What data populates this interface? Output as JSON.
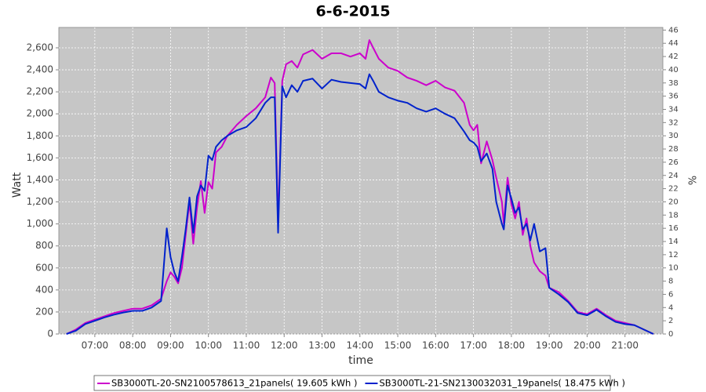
{
  "chart_data": {
    "type": "line",
    "title": "6-6-2015",
    "xlabel": "time",
    "ylabel": "Watt",
    "y2label": "%",
    "xlim": [
      6.05,
      22.0
    ],
    "xticks": [
      {
        "value": 7,
        "label": "07:00"
      },
      {
        "value": 8,
        "label": "08:00"
      },
      {
        "value": 9,
        "label": "09:00"
      },
      {
        "value": 10,
        "label": "10:00"
      },
      {
        "value": 11,
        "label": "11:00"
      },
      {
        "value": 12,
        "label": "12:00"
      },
      {
        "value": 13,
        "label": "13:00"
      },
      {
        "value": 14,
        "label": "14:00"
      },
      {
        "value": 15,
        "label": "15:00"
      },
      {
        "value": 16,
        "label": "16:00"
      },
      {
        "value": 17,
        "label": "17:00"
      },
      {
        "value": 18,
        "label": "18:00"
      },
      {
        "value": 19,
        "label": "19:00"
      },
      {
        "value": 20,
        "label": "20:00"
      },
      {
        "value": 21,
        "label": "21:00"
      }
    ],
    "ylim": [
      0,
      2785
    ],
    "yticks": [
      0,
      200,
      400,
      600,
      800,
      {
        "value": 1000,
        "label": "1,000"
      },
      {
        "value": 1200,
        "label": "1,200"
      },
      {
        "value": 1400,
        "label": "1,400"
      },
      {
        "value": 1600,
        "label": "1,600"
      },
      {
        "value": 1800,
        "label": "1,800"
      },
      {
        "value": 2000,
        "label": "2,000"
      },
      {
        "value": 2200,
        "label": "2,200"
      },
      {
        "value": 2400,
        "label": "2,400"
      },
      {
        "value": 2600,
        "label": "2,600"
      }
    ],
    "y2lim": [
      0,
      46.4
    ],
    "y2ticks": [
      0,
      2,
      4,
      6,
      8,
      10,
      12,
      14,
      16,
      18,
      20,
      22,
      24,
      26,
      28,
      30,
      32,
      34,
      36,
      38,
      40,
      42,
      44,
      46
    ],
    "grid": true,
    "x": [
      6.25,
      6.5,
      6.75,
      7,
      7.25,
      7.5,
      7.75,
      8,
      8.25,
      8.5,
      8.75,
      8.9,
      9,
      9.1,
      9.2,
      9.3,
      9.4,
      9.5,
      9.6,
      9.7,
      9.8,
      9.9,
      10,
      10.1,
      10.2,
      10.35,
      10.5,
      10.75,
      11,
      11.25,
      11.5,
      11.65,
      11.75,
      11.84,
      11.95,
      12.05,
      12.2,
      12.35,
      12.5,
      12.75,
      13,
      13.25,
      13.5,
      13.75,
      14,
      14.15,
      14.25,
      14.35,
      14.5,
      14.75,
      15,
      15.25,
      15.5,
      15.75,
      16,
      16.25,
      16.5,
      16.75,
      16.9,
      17,
      17.1,
      17.2,
      17.35,
      17.5,
      17.6,
      17.75,
      17.8,
      17.9,
      18,
      18.1,
      18.2,
      18.3,
      18.4,
      18.5,
      18.6,
      18.75,
      18.9,
      19,
      19.25,
      19.5,
      19.75,
      20,
      20.25,
      20.5,
      20.75,
      21,
      21.25,
      21.5,
      21.75
    ],
    "series": [
      {
        "name": "SB3000TL-20-SN2100578613_21panels( 19.605 kWh )",
        "color": "#cc00cc",
        "values": [
          0,
          40,
          100,
          130,
          160,
          190,
          210,
          230,
          230,
          260,
          320,
          480,
          560,
          520,
          460,
          600,
          900,
          1200,
          820,
          1150,
          1390,
          1100,
          1380,
          1320,
          1650,
          1700,
          1800,
          1900,
          1980,
          2050,
          2150,
          2330,
          2280,
          1000,
          2300,
          2450,
          2480,
          2420,
          2540,
          2580,
          2500,
          2550,
          2550,
          2520,
          2550,
          2500,
          2670,
          2600,
          2500,
          2420,
          2390,
          2330,
          2300,
          2260,
          2300,
          2240,
          2210,
          2100,
          1900,
          1850,
          1900,
          1550,
          1750,
          1580,
          1420,
          1200,
          1000,
          1420,
          1180,
          1050,
          1200,
          900,
          1050,
          800,
          650,
          570,
          530,
          420,
          380,
          300,
          200,
          180,
          230,
          170,
          120,
          100,
          80,
          40,
          0
        ]
      },
      {
        "name": "SB3000TL-21-SN2130032031_19panels( 18.475 kWh )",
        "color": "#0022cc",
        "values": [
          0,
          30,
          90,
          120,
          150,
          175,
          195,
          210,
          210,
          240,
          300,
          960,
          700,
          560,
          480,
          700,
          950,
          1240,
          920,
          1250,
          1350,
          1300,
          1620,
          1580,
          1700,
          1760,
          1800,
          1850,
          1880,
          1960,
          2100,
          2150,
          2150,
          920,
          2250,
          2150,
          2260,
          2200,
          2300,
          2320,
          2230,
          2310,
          2290,
          2280,
          2270,
          2230,
          2360,
          2300,
          2200,
          2150,
          2120,
          2100,
          2050,
          2020,
          2050,
          2000,
          1960,
          1840,
          1760,
          1740,
          1700,
          1570,
          1640,
          1500,
          1200,
          1000,
          950,
          1350,
          1230,
          1100,
          1150,
          950,
          1000,
          850,
          1000,
          750,
          780,
          420,
          360,
          290,
          190,
          170,
          220,
          160,
          110,
          90,
          80,
          40,
          0
        ]
      }
    ]
  }
}
